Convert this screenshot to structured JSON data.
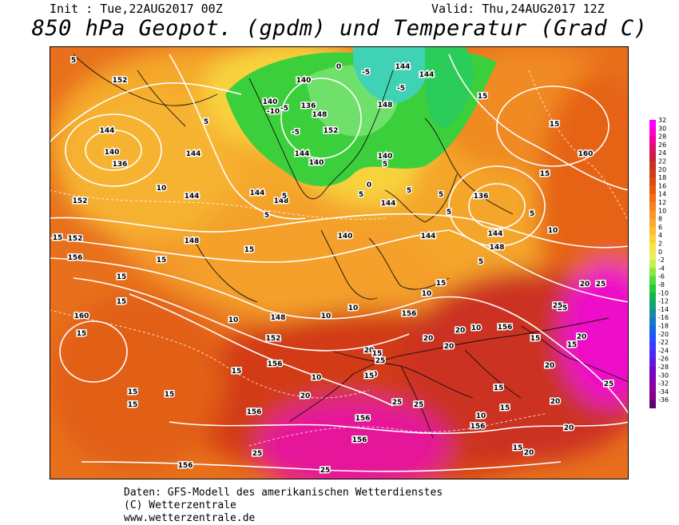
{
  "header": {
    "init": "Init : Tue,22AUG2017 00Z",
    "valid": "Valid: Thu,24AUG2017 12Z",
    "title": "850 hPa Geopot. (gpdm) und Temperatur (Grad C)"
  },
  "footer": {
    "line1": "Daten: GFS-Modell des amerikanischen Wetterdienstes",
    "line2": "(C) Wetterzentrale",
    "line3": "www.wetterzentrale.de"
  },
  "colorbar": {
    "labels": [
      "32",
      "30",
      "28",
      "26",
      "24",
      "22",
      "20",
      "18",
      "16",
      "14",
      "12",
      "10",
      "8",
      "6",
      "4",
      "2",
      "0",
      "-2",
      "-4",
      "-6",
      "-8",
      "-10",
      "-12",
      "-14",
      "-16",
      "-18",
      "-20",
      "-22",
      "-24",
      "-26",
      "-28",
      "-30",
      "-32",
      "-34",
      "-36"
    ],
    "colors": [
      "#ff00ff",
      "#ff00cc",
      "#ee0099",
      "#dd1166",
      "#c81e3c",
      "#c83228",
      "#d23c14",
      "#dc4a10",
      "#e65a10",
      "#f06e14",
      "#f58220",
      "#f8962a",
      "#faaa2e",
      "#fcbe32",
      "#fcd23c",
      "#f5e648",
      "#e6f05a",
      "#c8f050",
      "#8ce646",
      "#50dc3c",
      "#28c83c",
      "#14b450",
      "#14a078",
      "#148ca0",
      "#1478c8",
      "#1464e6",
      "#2850ff",
      "#3c3cff",
      "#5028f0",
      "#6414dc",
      "#7800c8",
      "#8200b4",
      "#8c00a0",
      "#82008c",
      "#640078"
    ]
  },
  "map_labels": {
    "geopotential": [
      {
        "text": "152"
      },
      {
        "text": "144"
      },
      {
        "text": "140"
      },
      {
        "text": "136"
      },
      {
        "text": "152"
      },
      {
        "text": "152"
      },
      {
        "text": "156"
      },
      {
        "text": "160"
      },
      {
        "text": "148"
      },
      {
        "text": "144"
      },
      {
        "text": "140"
      },
      {
        "text": "136"
      },
      {
        "text": "148"
      },
      {
        "text": "152"
      },
      {
        "text": "144"
      },
      {
        "text": "144"
      },
      {
        "text": "148"
      },
      {
        "text": "140"
      },
      {
        "text": "144"
      },
      {
        "text": "148"
      },
      {
        "text": "140"
      },
      {
        "text": "136"
      },
      {
        "text": "144"
      },
      {
        "text": "148"
      },
      {
        "text": "144"
      },
      {
        "text": "152"
      },
      {
        "text": "156"
      },
      {
        "text": "156"
      },
      {
        "text": "156"
      },
      {
        "text": "156"
      },
      {
        "text": "156"
      },
      {
        "text": "156"
      },
      {
        "text": "156"
      },
      {
        "text": "160"
      },
      {
        "text": "144"
      },
      {
        "text": "140"
      },
      {
        "text": "148"
      },
      {
        "text": "156"
      },
      {
        "text": "144"
      },
      {
        "text": "144"
      },
      {
        "text": "140"
      }
    ],
    "temperature": [
      {
        "text": "5"
      },
      {
        "text": "5"
      },
      {
        "text": "5"
      },
      {
        "text": "10"
      },
      {
        "text": "15"
      },
      {
        "text": "15"
      },
      {
        "text": "15"
      },
      {
        "text": "15"
      },
      {
        "text": "15"
      },
      {
        "text": "15"
      },
      {
        "text": "15"
      },
      {
        "text": "15"
      },
      {
        "text": "15"
      },
      {
        "text": "15"
      },
      {
        "text": "10"
      },
      {
        "text": "10"
      },
      {
        "text": "10"
      },
      {
        "text": "10"
      },
      {
        "text": "10"
      },
      {
        "text": "15"
      },
      {
        "text": "20"
      },
      {
        "text": "20"
      },
      {
        "text": "25"
      },
      {
        "text": "25"
      },
      {
        "text": "20"
      },
      {
        "text": "20"
      },
      {
        "text": "25"
      },
      {
        "text": "25"
      },
      {
        "text": "25"
      },
      {
        "text": "25"
      },
      {
        "text": "20"
      },
      {
        "text": "20"
      },
      {
        "text": "20"
      },
      {
        "text": "20"
      },
      {
        "text": "15"
      },
      {
        "text": "15"
      },
      {
        "text": "15"
      },
      {
        "text": "10"
      },
      {
        "text": "10"
      },
      {
        "text": "5"
      },
      {
        "text": "5"
      },
      {
        "text": "5"
      },
      {
        "text": "5"
      },
      {
        "text": "0"
      },
      {
        "text": "0"
      },
      {
        "text": "-5"
      },
      {
        "text": "-5"
      },
      {
        "text": "-5"
      },
      {
        "text": "-5"
      },
      {
        "text": "-10"
      },
      {
        "text": "5"
      },
      {
        "text": "5"
      },
      {
        "text": "5"
      },
      {
        "text": "5"
      },
      {
        "text": "15"
      },
      {
        "text": "15"
      },
      {
        "text": "15"
      },
      {
        "text": "20"
      },
      {
        "text": "20"
      },
      {
        "text": "25"
      },
      {
        "text": "20"
      },
      {
        "text": "15"
      },
      {
        "text": "15"
      },
      {
        "text": "10"
      },
      {
        "text": "20"
      },
      {
        "text": "25"
      },
      {
        "text": "25"
      },
      {
        "text": "20"
      },
      {
        "text": "15"
      },
      {
        "text": "15"
      }
    ]
  }
}
